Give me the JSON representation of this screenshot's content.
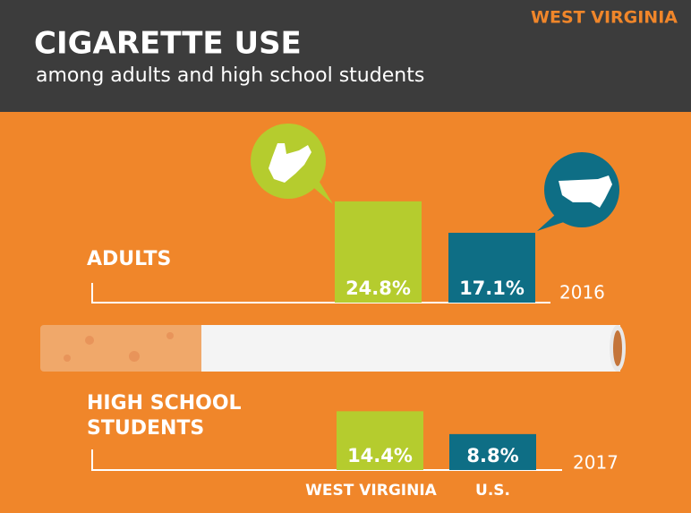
{
  "header": {
    "state": "WEST VIRGINIA",
    "title": "CIGARETTE USE",
    "subtitle": "among adults and high school students"
  },
  "chart_data": [
    {
      "type": "bar",
      "title": "ADULTS",
      "year": "2016",
      "categories": [
        null,
        null
      ],
      "values": [
        24.8,
        17.1
      ],
      "value_labels": [
        "24.8%",
        "17.1%"
      ],
      "colors": [
        "#b5cc2e",
        "#0e6e85"
      ]
    },
    {
      "type": "bar",
      "title": "HIGH SCHOOL STUDENTS",
      "year": "2017",
      "categories": [
        "WEST VIRGINIA",
        "U.S."
      ],
      "values": [
        14.4,
        8.8
      ],
      "value_labels": [
        "14.4%",
        "8.8%"
      ],
      "colors": [
        "#b5cc2e",
        "#0e6e85"
      ]
    }
  ]
}
